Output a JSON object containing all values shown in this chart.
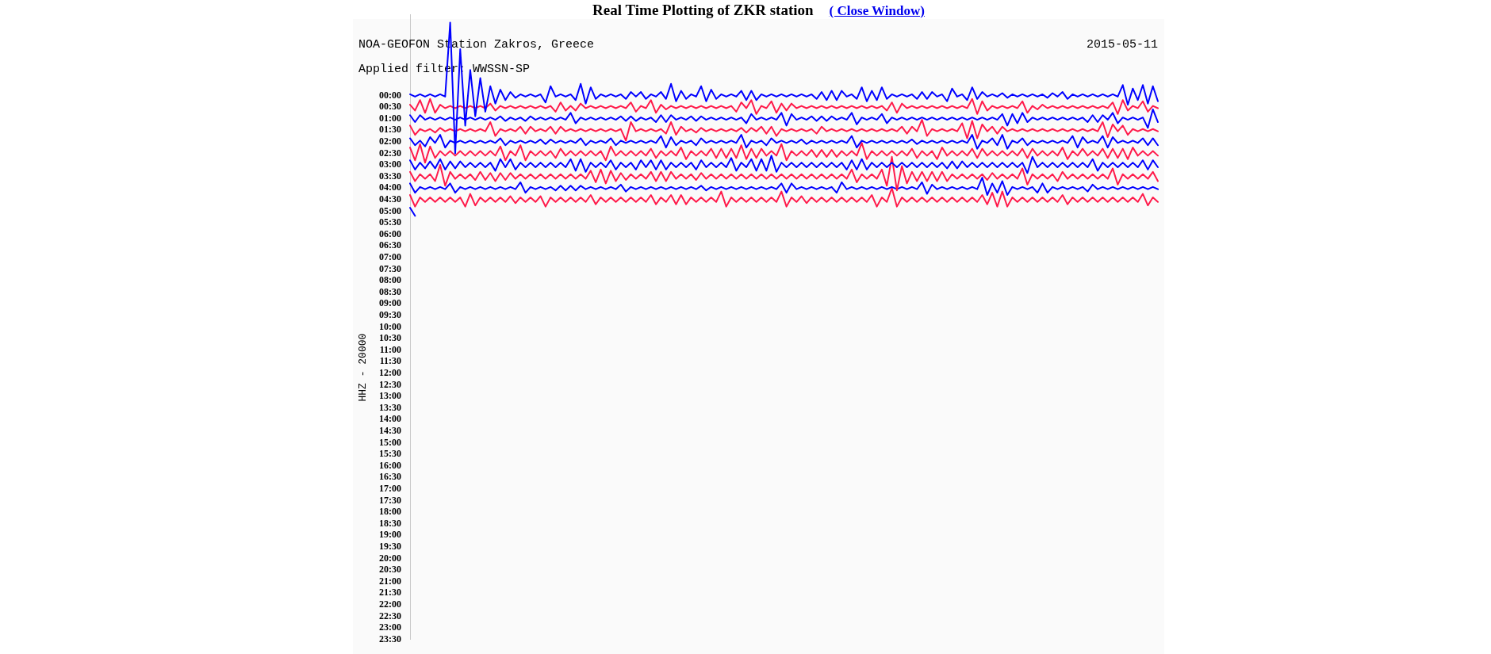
{
  "chart_data": {
    "type": "line",
    "title": "Real Time Plotting of ZKR station",
    "subtitle": "NOA-GEOFON Station Zakros, Greece",
    "ylabel": "HHZ - 20000",
    "annotations": [
      "2015-05-11",
      "Applied filter: WWSSN-SP",
      "( Close Window)"
    ],
    "tick_labels": "y",
    "categories": [
      null,
      null,
      null,
      null,
      null,
      null,
      null,
      null,
      null,
      null,
      null,
      null,
      null,
      null,
      null,
      null,
      null,
      null,
      null,
      null,
      null,
      null,
      null,
      null,
      null,
      null,
      null,
      null,
      null,
      null,
      null,
      null,
      null,
      null,
      null,
      null,
      null,
      null,
      null,
      null,
      null,
      null,
      null,
      null,
      null,
      null,
      null,
      null,
      null,
      null,
      null,
      null,
      null,
      null,
      null,
      null,
      null,
      null,
      null,
      null,
      null,
      null,
      null,
      null,
      null,
      null,
      null,
      null,
      null,
      null,
      null,
      null,
      null,
      null,
      null,
      null,
      null,
      null,
      null,
      null,
      null,
      null,
      null,
      null,
      null,
      null,
      null,
      null,
      null,
      null,
      null,
      null,
      null,
      null,
      null,
      null,
      null,
      null,
      null,
      null,
      null,
      null,
      null,
      null,
      null,
      null,
      null,
      null,
      null,
      null,
      null,
      null,
      null,
      null,
      null,
      null,
      null,
      null,
      null,
      null,
      null,
      null,
      null,
      null,
      null,
      null,
      null,
      null,
      null,
      null,
      null,
      null,
      null,
      null,
      null,
      null,
      null,
      null,
      null,
      null,
      null,
      null,
      null,
      null,
      null,
      null,
      null,
      null,
      null,
      null
    ],
    "ylim": [
      23.5,
      -3.5
    ],
    "yticks": [
      {
        "value": 0,
        "label": "00:00"
      },
      {
        "value": 0.5,
        "label": "00:30"
      },
      {
        "value": 1,
        "label": "01:00"
      },
      {
        "value": 1.5,
        "label": "01:30"
      },
      {
        "value": 2,
        "label": "02:00"
      },
      {
        "value": 2.5,
        "label": "02:30"
      },
      {
        "value": 3,
        "label": "03:00"
      },
      {
        "value": 3.5,
        "label": "03:30"
      },
      {
        "value": 4,
        "label": "04:00"
      },
      {
        "value": 4.5,
        "label": "04:30"
      },
      {
        "value": 5,
        "label": "05:00"
      },
      {
        "value": 5.5,
        "label": "05:30"
      },
      {
        "value": 6,
        "label": "06:00"
      },
      {
        "value": 6.5,
        "label": "06:30"
      },
      {
        "value": 7,
        "label": "07:00"
      },
      {
        "value": 7.5,
        "label": "07:30"
      },
      {
        "value": 8,
        "label": "08:00"
      },
      {
        "value": 8.5,
        "label": "08:30"
      },
      {
        "value": 9,
        "label": "09:00"
      },
      {
        "value": 9.5,
        "label": "09:30"
      },
      {
        "value": 10,
        "label": "10:00"
      },
      {
        "value": 10.5,
        "label": "10:30"
      },
      {
        "value": 11,
        "label": "11:00"
      },
      {
        "value": 11.5,
        "label": "11:30"
      },
      {
        "value": 12,
        "label": "12:00"
      },
      {
        "value": 12.5,
        "label": "12:30"
      },
      {
        "value": 13,
        "label": "13:00"
      },
      {
        "value": 13.5,
        "label": "13:30"
      },
      {
        "value": 14,
        "label": "14:00"
      },
      {
        "value": 14.5,
        "label": "14:30"
      },
      {
        "value": 15,
        "label": "15:00"
      },
      {
        "value": 15.5,
        "label": "15:30"
      },
      {
        "value": 16,
        "label": "16:00"
      },
      {
        "value": 16.5,
        "label": "16:30"
      },
      {
        "value": 17,
        "label": "17:00"
      },
      {
        "value": 17.5,
        "label": "17:30"
      },
      {
        "value": 18,
        "label": "18:00"
      },
      {
        "value": 18.5,
        "label": "18:30"
      },
      {
        "value": 19,
        "label": "19:00"
      },
      {
        "value": 19.5,
        "label": "19:30"
      },
      {
        "value": 20,
        "label": "20:00"
      },
      {
        "value": 20.5,
        "label": "20:30"
      },
      {
        "value": 21,
        "label": "21:00"
      },
      {
        "value": 21.5,
        "label": "21:30"
      },
      {
        "value": 22,
        "label": "22:00"
      },
      {
        "value": 22.5,
        "label": "22:30"
      },
      {
        "value": 23,
        "label": "23:00"
      },
      {
        "value": 23.5,
        "label": "23:30"
      }
    ],
    "series": [
      {
        "color": "#0000ff",
        "values": [
          -0.05,
          0.05,
          -0.05,
          0.05,
          -0.05,
          0.05,
          -0.05,
          0.05,
          -3.15,
          2.5,
          -2.0,
          1.3,
          -1.1,
          0.9,
          -0.75,
          0.7,
          -0.4,
          0.35,
          -0.25,
          0.2,
          -0.15,
          0.1,
          -0.05,
          0.05,
          -0.05,
          0.05,
          -0.05,
          0.3,
          -0.4,
          0.05,
          -0.05,
          0.05,
          -0.05,
          0.2,
          -0.5,
          0.35,
          -0.35,
          0.15,
          -0.05,
          0.05,
          -0.05,
          0.05,
          -0.05,
          0.15,
          -0.15,
          0.05,
          -0.15,
          0.15,
          -0.05,
          0.05,
          -0.15,
          0.15,
          -0.5,
          0.25,
          -0.2,
          0.15,
          -0.05,
          0.05,
          -0.4,
          0.25,
          -0.25,
          0.15,
          -0.05,
          0.05,
          -0.05,
          0.05,
          -0.2,
          0.2,
          -0.2,
          0.2,
          -0.05,
          0.05,
          -0.05,
          0.05,
          -0.05,
          0.05,
          -0.05,
          0.05,
          -0.05,
          0.05,
          -0.05,
          0.15,
          -0.15,
          0.2,
          -0.2,
          0.2,
          -0.2,
          0.05,
          -0.05,
          0.15,
          -0.35,
          0.25,
          -0.2,
          0.2,
          -0.35,
          0.15,
          -0.05,
          0.05,
          -0.05,
          0.05,
          -0.05,
          0.15,
          -0.15,
          0.15,
          -0.15,
          0.05,
          -0.05,
          0.25,
          -0.3,
          0.05,
          -0.05,
          0.2,
          -0.35,
          0.15,
          -0.15,
          0.05,
          -0.05,
          0.05,
          -0.1,
          0.1,
          -0.05,
          0.05,
          -0.05,
          0.05,
          -0.05,
          0.05,
          -0.05,
          0.1,
          -0.1,
          0.05,
          -0.15,
          0.15,
          -0.05,
          0.05,
          -0.05,
          0.05,
          -0.05,
          0.05,
          -0.05,
          0.05,
          -0.05,
          0.05,
          -0.45,
          0.4,
          -0.3,
          0.2,
          -0.45,
          0.35,
          -0.4,
          0.25
        ]
      },
      {
        "color": "#ff1a4a",
        "values": [
          0.4,
          0.65,
          0.2,
          0.75,
          0.15,
          0.75,
          0.4,
          0.55,
          0.45,
          0.55,
          0.45,
          0.55,
          0.45,
          0.55,
          0.45,
          0.55,
          0.35,
          0.65,
          0.45,
          0.55,
          0.45,
          0.55,
          0.45,
          0.55,
          0.45,
          0.55,
          0.45,
          0.55,
          0.45,
          0.7,
          0.3,
          0.65,
          0.45,
          0.65,
          0.35,
          0.55,
          0.45,
          0.55,
          0.45,
          0.55,
          0.45,
          0.55,
          0.45,
          0.55,
          0.3,
          0.7,
          0.45,
          0.55,
          0.2,
          0.75,
          0.4,
          0.6,
          0.45,
          0.55,
          0.45,
          0.55,
          0.45,
          0.55,
          0.45,
          0.55,
          0.45,
          0.55,
          0.45,
          0.55,
          0.45,
          0.7,
          0.3,
          0.55,
          0.2,
          0.8,
          0.45,
          0.55,
          0.25,
          0.75,
          0.35,
          0.65,
          0.35,
          0.55,
          0.45,
          0.55,
          0.45,
          0.55,
          0.45,
          0.55,
          0.45,
          0.55,
          0.45,
          0.55,
          0.45,
          0.55,
          0.45,
          0.55,
          0.45,
          0.55,
          0.45,
          0.65,
          0.3,
          0.75,
          0.35,
          0.55,
          0.45,
          0.55,
          0.45,
          0.55,
          0.45,
          0.55,
          0.45,
          0.55,
          0.45,
          0.55,
          0.45,
          0.55,
          0.15,
          0.8,
          0.25,
          0.65,
          0.45,
          0.55,
          0.45,
          0.55,
          0.45,
          0.55,
          0.25,
          0.75,
          0.45,
          0.6,
          0.4,
          0.55,
          0.45,
          0.55,
          0.45,
          0.55,
          0.45,
          0.55,
          0.45,
          0.55,
          0.45,
          0.55,
          0.45,
          0.55,
          0.3,
          0.8,
          0.2,
          0.65,
          0.45,
          0.55,
          0.25,
          0.7,
          0.45,
          0.55
        ]
      },
      {
        "color": "#0000ff",
        "values": [
          0.85,
          1.15,
          0.85,
          1.05,
          0.95,
          1.05,
          0.95,
          1.05,
          0.95,
          1.05,
          0.95,
          1.05,
          0.95,
          1.05,
          0.95,
          1.05,
          0.95,
          1.05,
          0.9,
          1.1,
          0.95,
          1.05,
          0.95,
          1.1,
          0.9,
          1.05,
          0.95,
          1.05,
          0.95,
          1.05,
          0.95,
          1.05,
          0.75,
          1.2,
          0.95,
          1.05,
          0.95,
          1.05,
          0.95,
          1.05,
          0.95,
          1.05,
          0.9,
          1.1,
          0.9,
          1.1,
          0.95,
          1.05,
          0.95,
          1.15,
          0.85,
          1.15,
          0.85,
          1.05,
          0.95,
          1.05,
          0.9,
          1.1,
          0.9,
          1.05,
          0.95,
          1.05,
          0.95,
          1.05,
          0.95,
          1.05,
          0.95,
          1.2,
          0.8,
          1.05,
          0.95,
          1.05,
          0.95,
          1.05,
          0.75,
          1.3,
          0.8,
          1.05,
          0.95,
          1.05,
          0.9,
          1.1,
          0.9,
          1.1,
          0.9,
          1.05,
          0.95,
          1.05,
          0.75,
          1.25,
          0.95,
          1.05,
          0.95,
          1.05,
          0.8,
          1.2,
          0.95,
          1.05,
          0.95,
          1.05,
          0.95,
          1.05,
          0.95,
          1.05,
          0.95,
          1.05,
          0.95,
          1.05,
          0.95,
          1.05,
          0.95,
          1.05,
          0.95,
          1.05,
          0.95,
          1.05,
          0.95,
          1.05,
          0.8,
          1.3,
          0.8,
          1.2,
          0.75,
          1.15,
          0.95,
          1.05,
          0.95,
          1.05,
          0.95,
          1.05,
          0.95,
          1.05,
          0.95,
          1.05,
          0.95,
          1.15,
          0.85,
          1.15,
          0.85,
          1.05,
          0.75,
          1.2,
          0.95,
          1.05,
          0.95,
          1.05,
          0.95,
          1.4,
          0.6,
          1.15
        ]
      },
      {
        "color": "#ff1a4a",
        "values": [
          1.3,
          1.7,
          1.45,
          1.55,
          1.45,
          1.6,
          1.4,
          1.55,
          1.45,
          1.55,
          1.45,
          1.55,
          1.45,
          1.55,
          1.45,
          1.55,
          1.15,
          1.75,
          1.45,
          1.55,
          1.45,
          1.55,
          1.35,
          1.65,
          1.35,
          1.55,
          1.45,
          1.55,
          1.35,
          1.65,
          1.35,
          1.55,
          1.45,
          1.55,
          1.45,
          1.55,
          1.45,
          1.55,
          1.45,
          1.55,
          1.45,
          1.55,
          1.45,
          1.95,
          1.15,
          1.55,
          1.45,
          1.55,
          1.45,
          1.55,
          1.45,
          1.65,
          1.15,
          1.7,
          1.35,
          1.55,
          1.45,
          1.6,
          1.4,
          1.55,
          1.45,
          1.55,
          1.45,
          1.55,
          1.45,
          1.55,
          1.4,
          1.6,
          1.4,
          1.55,
          1.35,
          1.65,
          1.35,
          1.75,
          1.45,
          1.55,
          1.45,
          1.55,
          1.45,
          1.55,
          1.45,
          1.65,
          1.35,
          1.55,
          1.45,
          1.55,
          1.45,
          1.55,
          1.45,
          1.55,
          1.45,
          1.55,
          1.45,
          1.55,
          1.45,
          1.55,
          1.45,
          1.55,
          1.35,
          1.65,
          1.35,
          1.55,
          1.05,
          1.75,
          1.45,
          1.55,
          1.45,
          1.55,
          1.45,
          1.55,
          1.2,
          1.85,
          1.1,
          1.85,
          1.25,
          1.55,
          1.35,
          1.65,
          1.35,
          1.55,
          1.45,
          1.55,
          1.45,
          1.55,
          1.45,
          1.55,
          1.45,
          1.55,
          1.45,
          1.55,
          1.45,
          1.55,
          1.45,
          1.55,
          1.45,
          1.55,
          1.45,
          1.55,
          1.15,
          1.8,
          1.25,
          1.55,
          1.3,
          1.7,
          1.45,
          1.55,
          1.45,
          1.55,
          1.45,
          1.55
        ]
      },
      {
        "color": "#0000ff",
        "values": [
          1.85,
          2.15,
          1.95,
          2.2,
          1.8,
          2.05,
          1.7,
          2.25,
          1.95,
          2.05,
          1.95,
          2.05,
          1.95,
          2.05,
          1.95,
          2.05,
          1.95,
          2.05,
          1.85,
          2.15,
          1.95,
          2.05,
          1.95,
          2.05,
          1.95,
          2.05,
          1.9,
          2.1,
          1.9,
          2.05,
          1.95,
          2.05,
          1.95,
          2.05,
          1.85,
          2.15,
          1.95,
          2.05,
          1.95,
          2.05,
          1.85,
          2.15,
          1.95,
          2.05,
          1.95,
          2.05,
          1.95,
          2.05,
          1.95,
          2.05,
          1.75,
          2.25,
          1.8,
          2.15,
          1.95,
          2.05,
          1.95,
          2.15,
          1.85,
          2.05,
          1.95,
          2.05,
          1.95,
          2.05,
          1.95,
          2.05,
          1.7,
          2.25,
          1.95,
          2.05,
          1.95,
          2.15,
          1.85,
          2.05,
          1.95,
          2.05,
          1.95,
          2.05,
          1.9,
          2.1,
          1.95,
          2.05,
          1.95,
          2.05,
          1.95,
          2.05,
          1.95,
          2.05,
          1.75,
          2.25,
          1.95,
          2.05,
          1.95,
          2.05,
          1.95,
          2.05,
          1.95,
          2.05,
          1.95,
          2.05,
          1.9,
          2.1,
          1.95,
          2.05,
          1.95,
          2.05,
          1.95,
          2.05,
          1.95,
          2.05,
          1.95,
          2.05,
          1.7,
          2.3,
          1.95,
          2.05,
          1.85,
          2.15,
          1.7,
          2.3,
          1.95,
          2.05,
          1.85,
          2.15,
          1.95,
          2.05,
          1.95,
          2.05,
          1.95,
          2.05,
          1.95,
          2.05,
          1.75,
          2.25,
          1.8,
          2.05,
          1.95,
          2.05,
          1.75,
          2.25,
          1.8,
          2.05,
          1.95,
          2.05,
          1.95,
          2.05,
          1.85,
          2.15,
          1.85,
          2.15
        ]
      },
      {
        "color": "#ff1a4a",
        "values": [
          2.25,
          2.8,
          2.1,
          2.9,
          2.2,
          2.7,
          2.4,
          2.6,
          2.4,
          2.6,
          2.4,
          2.6,
          2.4,
          2.6,
          2.4,
          2.6,
          2.4,
          2.6,
          2.2,
          2.8,
          2.4,
          2.6,
          2.15,
          2.8,
          2.4,
          2.6,
          2.4,
          2.6,
          2.4,
          2.7,
          2.3,
          2.6,
          2.4,
          2.6,
          2.4,
          2.6,
          2.4,
          2.6,
          2.4,
          2.8,
          2.2,
          2.6,
          2.4,
          2.6,
          2.4,
          2.6,
          2.4,
          2.6,
          2.3,
          2.7,
          2.4,
          2.6,
          2.4,
          2.6,
          2.25,
          2.75,
          2.4,
          2.6,
          2.4,
          2.6,
          2.3,
          2.7,
          2.3,
          2.7,
          2.3,
          2.7,
          2.15,
          2.75,
          2.3,
          2.7,
          2.3,
          2.6,
          2.4,
          2.6,
          2.1,
          2.8,
          2.4,
          2.6,
          2.4,
          2.6,
          2.35,
          2.65,
          2.35,
          2.65,
          2.35,
          2.65,
          2.4,
          2.6,
          2.4,
          2.6,
          2.05,
          2.75,
          2.4,
          2.6,
          2.4,
          2.6,
          2.4,
          2.6,
          2.4,
          2.6,
          2.3,
          2.7,
          2.4,
          2.6,
          2.4,
          2.75,
          2.25,
          2.6,
          2.4,
          2.6,
          2.4,
          2.6,
          2.3,
          2.7,
          2.3,
          2.6,
          2.4,
          2.6,
          2.4,
          2.6,
          2.4,
          2.6,
          2.3,
          2.7,
          2.3,
          2.6,
          2.4,
          2.6,
          2.4,
          2.6,
          2.25,
          2.75,
          2.4,
          2.6,
          2.3,
          2.6,
          2.4,
          2.6,
          2.3,
          2.7,
          2.3,
          2.7,
          2.3,
          2.75,
          2.25,
          2.6,
          2.4,
          2.6,
          2.4,
          2.6
        ]
      },
      {
        "color": "#0000ff",
        "values": [
          2.8,
          3.2,
          2.9,
          3.15,
          2.85,
          3.15,
          2.75,
          3.2,
          2.85,
          3.15,
          2.85,
          3.1,
          2.9,
          3.1,
          2.9,
          3.1,
          2.9,
          3.25,
          2.75,
          3.1,
          2.75,
          3.2,
          2.9,
          3.1,
          2.9,
          3.1,
          2.9,
          3.1,
          2.9,
          3.1,
          2.9,
          3.1,
          2.75,
          3.25,
          2.75,
          3.3,
          2.9,
          3.1,
          2.9,
          3.1,
          2.8,
          3.2,
          2.9,
          3.1,
          2.9,
          3.2,
          2.8,
          3.1,
          2.8,
          3.2,
          2.8,
          3.2,
          2.9,
          3.1,
          2.9,
          3.1,
          2.9,
          3.2,
          2.8,
          3.1,
          2.9,
          3.1,
          2.9,
          3.1,
          2.7,
          3.25,
          2.9,
          3.1,
          2.75,
          3.25,
          2.75,
          3.25,
          2.6,
          3.3,
          2.9,
          3.1,
          2.9,
          3.1,
          2.9,
          3.1,
          2.9,
          3.1,
          2.9,
          3.1,
          2.9,
          3.1,
          2.9,
          3.2,
          2.8,
          3.2,
          2.75,
          3.2,
          2.9,
          3.1,
          2.9,
          3.1,
          2.9,
          3.1,
          2.9,
          3.1,
          2.9,
          3.1,
          2.9,
          3.1,
          2.9,
          3.1,
          2.9,
          3.15,
          2.85,
          3.15,
          2.85,
          3.1,
          2.9,
          3.1,
          2.9,
          3.1,
          2.9,
          3.1,
          2.9,
          3.1,
          2.9,
          3.1,
          2.9,
          3.35,
          2.65,
          3.1,
          2.9,
          3.1,
          2.9,
          3.1,
          2.9,
          3.1,
          2.9,
          3.1,
          2.9,
          3.1,
          2.75,
          3.25,
          2.9,
          3.1,
          2.9,
          3.1,
          2.9,
          3.1,
          2.9,
          3.1,
          2.8,
          3.2,
          2.8,
          3.1
        ]
      },
      {
        "color": "#ff1a4a",
        "values": [
          3.3,
          3.7,
          3.4,
          3.6,
          3.4,
          3.7,
          3.0,
          3.9,
          3.3,
          3.6,
          3.4,
          3.6,
          3.4,
          3.65,
          3.3,
          3.65,
          3.35,
          3.7,
          3.35,
          3.65,
          3.35,
          3.6,
          3.4,
          3.6,
          3.4,
          3.6,
          3.4,
          3.6,
          3.4,
          3.6,
          3.4,
          3.6,
          3.4,
          3.6,
          3.4,
          3.6,
          3.25,
          3.75,
          3.2,
          3.8,
          3.25,
          3.7,
          3.35,
          3.65,
          3.4,
          3.6,
          3.4,
          3.6,
          3.3,
          3.7,
          3.3,
          3.7,
          3.3,
          3.6,
          3.4,
          3.6,
          3.4,
          3.65,
          3.35,
          3.6,
          3.4,
          3.6,
          3.4,
          3.6,
          3.4,
          3.6,
          3.4,
          3.6,
          3.4,
          3.6,
          3.4,
          3.6,
          3.4,
          3.6,
          3.4,
          3.6,
          3.4,
          3.6,
          3.4,
          3.6,
          3.4,
          3.6,
          3.4,
          3.6,
          3.4,
          3.6,
          3.4,
          3.6,
          3.2,
          3.75,
          3.4,
          3.6,
          3.4,
          3.6,
          3.2,
          3.9,
          2.65,
          4.1,
          3.05,
          3.8,
          3.3,
          3.7,
          3.3,
          3.7,
          3.3,
          3.7,
          3.3,
          3.7,
          3.4,
          3.6,
          3.4,
          3.6,
          3.4,
          3.6,
          3.4,
          3.65,
          3.35,
          3.6,
          3.4,
          3.6,
          3.4,
          3.6,
          3.15,
          3.85,
          3.4,
          3.6,
          3.4,
          3.6,
          3.4,
          3.7,
          3.3,
          3.6,
          3.4,
          3.6,
          3.4,
          3.6,
          3.4,
          3.6,
          3.4,
          3.6,
          3.15,
          3.85,
          3.4,
          3.6,
          3.4,
          3.6,
          3.4,
          3.6,
          3.3,
          3.7
        ]
      },
      {
        "color": "#0000ff",
        "values": [
          3.8,
          4.2,
          3.95,
          4.05,
          3.95,
          4.05,
          3.95,
          4.05,
          3.8,
          4.2,
          3.95,
          4.05,
          3.95,
          4.05,
          3.95,
          4.05,
          3.95,
          4.05,
          3.95,
          4.05,
          3.95,
          4.05,
          3.75,
          4.2,
          3.95,
          4.05,
          3.95,
          4.05,
          3.95,
          4.1,
          3.9,
          4.1,
          3.9,
          4.1,
          3.9,
          4.05,
          3.95,
          4.05,
          3.95,
          4.05,
          3.95,
          4.05,
          3.85,
          4.15,
          3.95,
          4.05,
          3.95,
          4.05,
          3.95,
          4.05,
          3.95,
          4.05,
          3.95,
          4.05,
          3.95,
          4.05,
          3.95,
          4.05,
          3.9,
          4.1,
          3.95,
          4.05,
          3.95,
          4.05,
          3.95,
          4.05,
          3.95,
          4.05,
          3.95,
          4.05,
          3.95,
          4.05,
          3.95,
          4.05,
          3.8,
          4.2,
          3.8,
          4.05,
          3.95,
          4.05,
          3.95,
          4.05,
          3.95,
          4.05,
          3.95,
          4.2,
          3.75,
          4.05,
          3.95,
          4.05,
          3.95,
          4.05,
          3.95,
          4.05,
          3.95,
          4.05,
          3.95,
          4.05,
          3.95,
          4.05,
          3.95,
          4.05,
          3.75,
          4.25,
          3.85,
          4.05,
          3.95,
          4.05,
          3.95,
          4.05,
          3.95,
          4.05,
          3.95,
          4.05,
          3.55,
          4.3,
          3.8,
          4.2,
          3.7,
          4.3,
          3.95,
          4.05,
          3.95,
          4.05,
          3.95,
          4.2,
          3.8,
          4.2,
          3.95,
          4.05,
          3.95,
          4.05,
          3.95,
          4.05,
          3.95,
          4.15,
          3.85,
          4.05,
          3.95,
          4.05,
          3.95,
          4.05,
          3.95,
          4.05,
          3.95,
          4.05,
          3.95,
          4.05,
          3.95,
          4.05
        ]
      },
      {
        "color": "#ff1a4a",
        "values": [
          4.3,
          4.8,
          4.4,
          4.6,
          4.4,
          4.6,
          4.4,
          4.6,
          4.4,
          4.6,
          4.4,
          4.8,
          4.25,
          4.75,
          4.4,
          4.6,
          4.4,
          4.6,
          4.4,
          4.6,
          4.35,
          4.65,
          4.4,
          4.6,
          4.4,
          4.6,
          4.35,
          4.8,
          4.4,
          4.6,
          4.4,
          4.6,
          4.4,
          4.6,
          4.4,
          4.6,
          4.3,
          4.7,
          4.4,
          4.6,
          4.4,
          4.6,
          4.4,
          4.6,
          4.4,
          4.6,
          4.4,
          4.6,
          4.3,
          4.7,
          4.4,
          4.6,
          4.3,
          4.7,
          4.3,
          4.7,
          4.4,
          4.6,
          4.4,
          4.6,
          4.4,
          4.6,
          4.15,
          4.8,
          4.4,
          4.6,
          4.4,
          4.6,
          4.4,
          4.6,
          4.4,
          4.6,
          4.4,
          4.6,
          4.15,
          4.8,
          4.4,
          4.6,
          4.35,
          4.65,
          4.4,
          4.6,
          4.4,
          4.6,
          4.4,
          4.6,
          4.4,
          4.6,
          4.4,
          4.6,
          4.4,
          4.6,
          4.3,
          4.8,
          4.4,
          4.6,
          4.0,
          4.8,
          4.4,
          4.6,
          4.4,
          4.6,
          4.4,
          4.6,
          4.4,
          4.6,
          4.4,
          4.6,
          4.4,
          4.6,
          4.4,
          4.6,
          4.4,
          4.6,
          4.3,
          4.7,
          4.2,
          4.8,
          4.15,
          4.8,
          4.4,
          4.6,
          4.4,
          4.6,
          4.4,
          4.6,
          4.4,
          4.6,
          4.4,
          4.6,
          4.3,
          4.7,
          4.4,
          4.6,
          4.4,
          4.6,
          4.4,
          4.6,
          4.4,
          4.6,
          4.4,
          4.6,
          4.4,
          4.6,
          4.4,
          4.6,
          4.25,
          4.75,
          4.4,
          4.6
        ]
      },
      {
        "color": "#0000ff",
        "values": [
          4.85,
          5.2,
          null,
          null,
          null,
          null,
          null,
          null,
          null,
          null,
          null,
          null,
          null,
          null,
          null,
          null,
          null,
          null,
          null,
          null,
          null,
          null,
          null,
          null,
          null,
          null,
          null,
          null,
          null,
          null,
          null,
          null,
          null,
          null,
          null,
          null,
          null,
          null,
          null,
          null,
          null,
          null,
          null,
          null,
          null,
          null,
          null,
          null,
          null,
          null,
          null,
          null,
          null,
          null,
          null,
          null,
          null,
          null,
          null,
          null,
          null,
          null,
          null,
          null,
          null,
          null,
          null,
          null,
          null,
          null,
          null,
          null,
          null,
          null,
          null,
          null,
          null,
          null,
          null,
          null,
          null,
          null,
          null,
          null,
          null,
          null,
          null,
          null,
          null,
          null,
          null,
          null,
          null,
          null,
          null,
          null,
          null,
          null,
          null,
          null,
          null,
          null,
          null,
          null,
          null,
          null,
          null,
          null,
          null,
          null,
          null,
          null,
          null,
          null,
          null,
          null,
          null,
          null,
          null,
          null,
          null,
          null,
          null,
          null,
          null,
          null,
          null,
          null,
          null,
          null,
          null,
          null,
          null,
          null,
          null,
          null,
          null,
          null,
          null,
          null,
          null,
          null,
          null,
          null,
          null,
          null,
          null,
          null,
          null,
          null
        ]
      }
    ]
  }
}
